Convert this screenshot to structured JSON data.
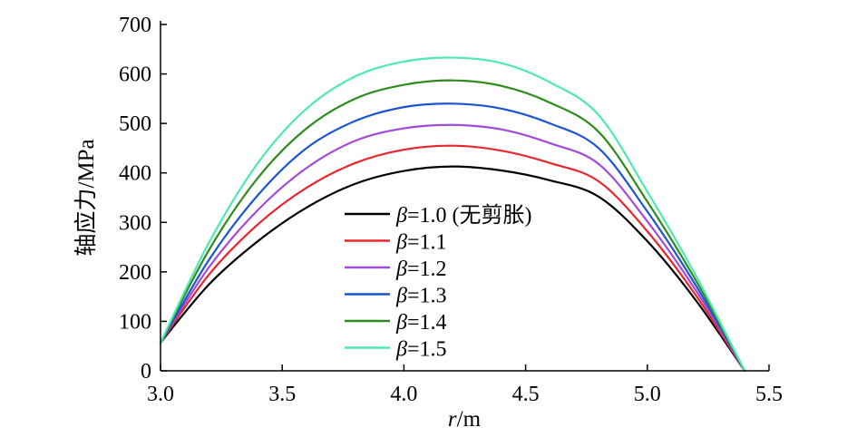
{
  "chart_data": {
    "type": "line",
    "xlabel": {
      "var": "r",
      "unit": "/m"
    },
    "ylabel": "轴应力/MPa",
    "xlim": [
      3.0,
      5.5
    ],
    "ylim": [
      0,
      700
    ],
    "xticks": [
      "3.0",
      "3.5",
      "4.0",
      "4.5",
      "5.0",
      "5.5"
    ],
    "yticks": [
      "0",
      "100",
      "200",
      "300",
      "400",
      "500",
      "600",
      "700"
    ],
    "grid": false,
    "legend_position": "center-left",
    "series": [
      {
        "name": "β=1.0 (无剪胀)",
        "label_symbol": "β",
        "label_rest": "=1.0 (无剪胀)",
        "color": "#000000",
        "x": [
          3.0,
          3.2,
          3.4,
          3.6,
          3.8,
          4.0,
          4.2,
          4.4,
          4.6,
          4.8,
          5.0,
          5.2,
          5.4
        ],
        "y": [
          57,
          175,
          262,
          330,
          378,
          404,
          413,
          405,
          385,
          352,
          262,
          142,
          0
        ]
      },
      {
        "name": "β=1.1",
        "label_symbol": "β",
        "label_rest": "=1.1",
        "color": "#e8262b",
        "x": [
          3.0,
          3.2,
          3.4,
          3.6,
          3.8,
          4.0,
          4.2,
          4.4,
          4.6,
          4.8,
          5.0,
          5.2,
          5.4
        ],
        "y": [
          57,
          195,
          296,
          370,
          420,
          447,
          455,
          445,
          420,
          383,
          282,
          152,
          0
        ]
      },
      {
        "name": "β=1.2",
        "label_symbol": "β",
        "label_rest": "=1.2",
        "color": "#a44ad8",
        "x": [
          3.0,
          3.2,
          3.4,
          3.6,
          3.8,
          4.0,
          4.2,
          4.4,
          4.6,
          4.8,
          5.0,
          5.2,
          5.4
        ],
        "y": [
          57,
          210,
          325,
          410,
          465,
          490,
          497,
          488,
          460,
          418,
          302,
          162,
          0
        ]
      },
      {
        "name": "β=1.3",
        "label_symbol": "β",
        "label_rest": "=1.3",
        "color": "#1c55d4",
        "x": [
          3.0,
          3.2,
          3.4,
          3.6,
          3.8,
          4.0,
          4.2,
          4.4,
          4.6,
          4.8,
          5.0,
          5.2,
          5.4
        ],
        "y": [
          57,
          225,
          355,
          450,
          505,
          533,
          540,
          530,
          500,
          450,
          322,
          172,
          0
        ]
      },
      {
        "name": "β=1.4",
        "label_symbol": "β",
        "label_rest": "=1.4",
        "color": "#2e8b1e",
        "x": [
          3.0,
          3.2,
          3.4,
          3.6,
          3.8,
          4.0,
          4.2,
          4.4,
          4.6,
          4.8,
          5.0,
          5.2,
          5.4
        ],
        "y": [
          57,
          245,
          390,
          490,
          550,
          578,
          587,
          576,
          542,
          483,
          342,
          182,
          0
        ]
      },
      {
        "name": "β=1.5",
        "label_symbol": "β",
        "label_rest": "=1.5",
        "color": "#4fe8b0",
        "x": [
          3.0,
          3.2,
          3.4,
          3.6,
          3.8,
          4.0,
          4.2,
          4.4,
          4.6,
          4.8,
          5.0,
          5.2,
          5.4
        ],
        "y": [
          57,
          260,
          420,
          530,
          595,
          625,
          633,
          622,
          583,
          517,
          362,
          192,
          0
        ]
      }
    ]
  }
}
